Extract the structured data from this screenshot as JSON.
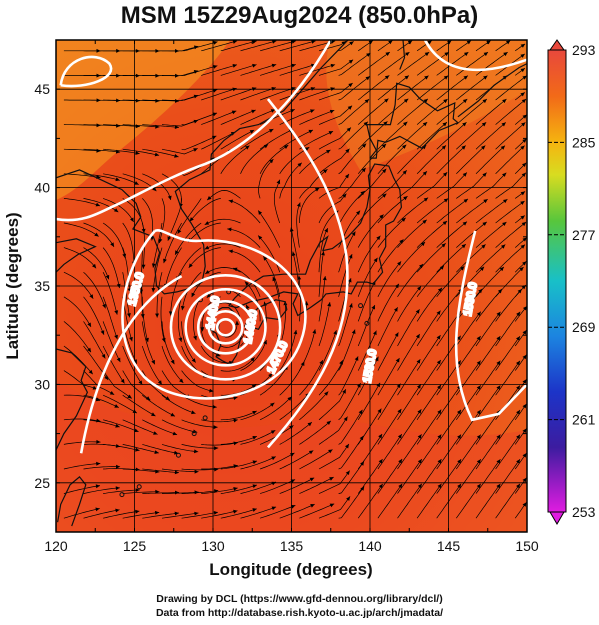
{
  "title": "MSM 15Z29Aug2024 (850.0hPa)",
  "x_axis": {
    "label": "Longitude (degrees)",
    "ticks": [
      "120",
      "125",
      "130",
      "135",
      "140",
      "145",
      "150"
    ],
    "range": [
      120,
      150
    ]
  },
  "y_axis": {
    "label": "Latitude  (degrees)",
    "ticks": [
      "25",
      "30",
      "35",
      "40",
      "45"
    ],
    "range": [
      22.5,
      47.5
    ]
  },
  "colorbar": {
    "ticks": [
      "293",
      "285",
      "277",
      "269",
      "261",
      "253"
    ],
    "min": 253,
    "max": 293
  },
  "contours": {
    "labels": [
      "1350.0",
      "1440.0",
      "1440.0",
      "1470.0",
      "1530.0",
      "1530.0"
    ],
    "color": "#ffffff"
  },
  "typhoon_center": {
    "lon": 130.8,
    "lat": 32.9
  },
  "credits": {
    "line1": "Drawing by DCL (https://www.gfd-dennou.org/library/dcl/)",
    "line2": "Data from http://database.rish.kyoto-u.ac.jp/arch/jmadata/"
  },
  "colors": {
    "field_dominant": "#e94a1a",
    "field_warm": "#f06020",
    "field_cool": "#f5a020",
    "streamline": "#000000"
  }
}
